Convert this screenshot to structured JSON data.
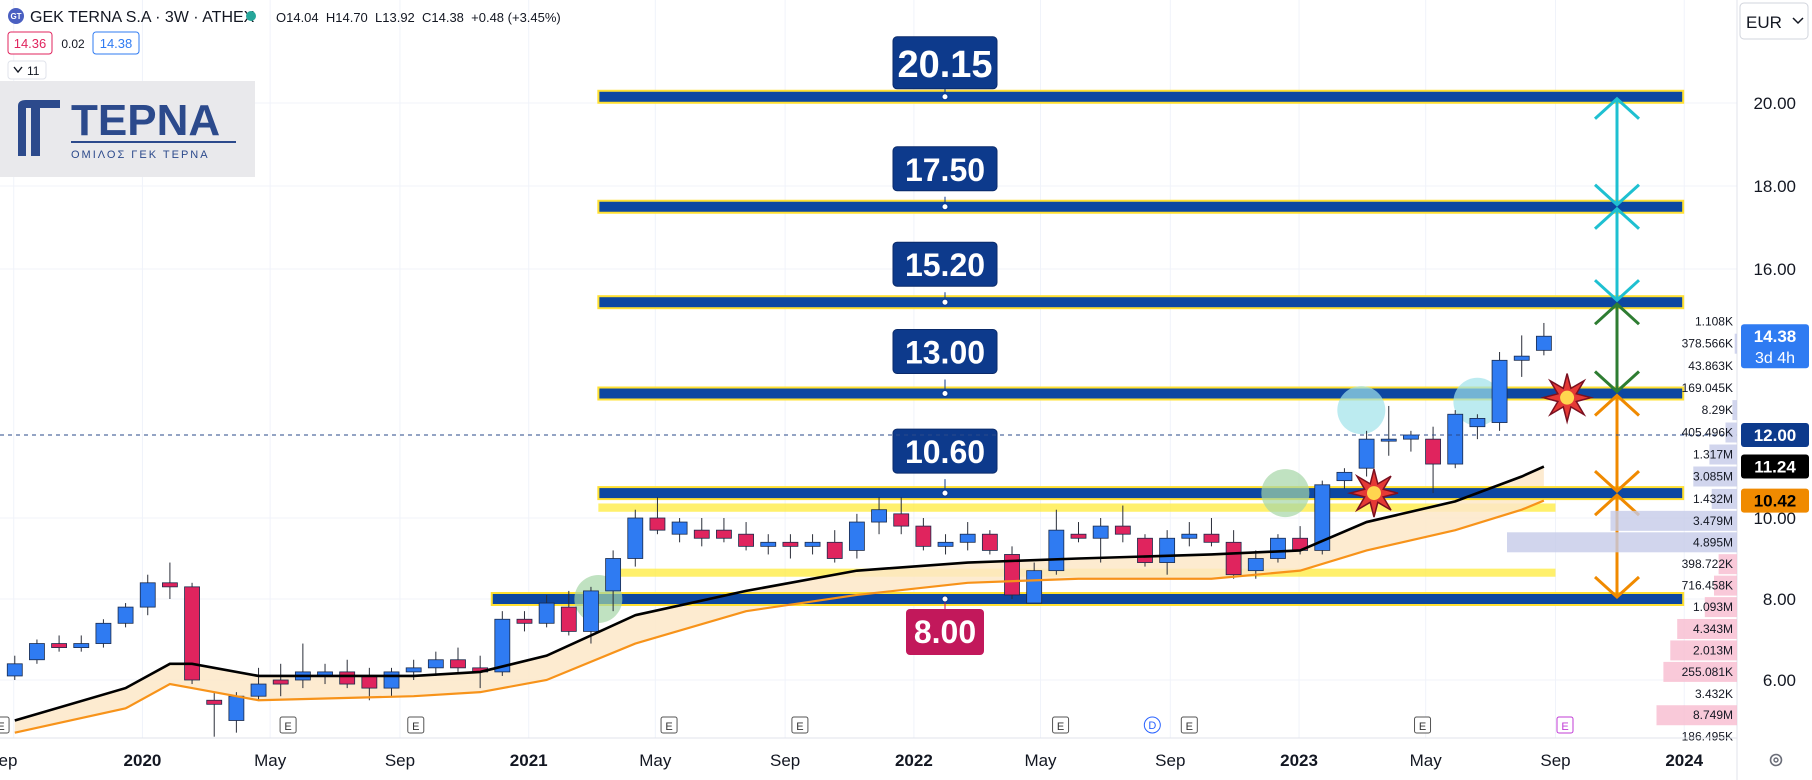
{
  "header": {
    "symbol_badge": "GT",
    "title": "GEK TERNA S.A · 3W · ATHEX",
    "ohlc": "O14.04  H14.70  L13.92  C14.38  +0.48 (+3.45%)",
    "bid": "14.36",
    "spread": "0.02",
    "ask": "14.38",
    "indicators_count": "11",
    "currency": "EUR"
  },
  "logo": {
    "name": "TEPNA",
    "subtitle": "ΟΜΙΛΟΣ ΓΕΚ ΤΕΡΝΑ"
  },
  "colors": {
    "up": "#2f7bf2",
    "down": "#e0245e",
    "level": "#0d47a1",
    "level_edge": "#ffe032",
    "ma_black": "#000000",
    "ma_orange": "#f7931a",
    "target_cyan": "#1ec0d1",
    "target_green": "#2e7d32",
    "target_orange": "#f08a00"
  },
  "chart_data": {
    "type": "candlestick",
    "y_range": [
      5,
      21
    ],
    "x_range": [
      "2019-09",
      "2024-02"
    ],
    "price_ticks": [
      "6.00",
      "8.00",
      "10.00",
      "16.00",
      "18.00",
      "20.00"
    ],
    "time_ticks": [
      {
        "label": "ep",
        "date": "2019-09"
      },
      {
        "label": "2020",
        "date": "2020-01",
        "bold": true
      },
      {
        "label": "May",
        "date": "2020-05"
      },
      {
        "label": "Sep",
        "date": "2020-09"
      },
      {
        "label": "2021",
        "date": "2021-01",
        "bold": true
      },
      {
        "label": "May",
        "date": "2021-05"
      },
      {
        "label": "Sep",
        "date": "2021-09"
      },
      {
        "label": "2022",
        "date": "2022-01",
        "bold": true
      },
      {
        "label": "May",
        "date": "2022-05"
      },
      {
        "label": "Sep",
        "date": "2022-09"
      },
      {
        "label": "2023",
        "date": "2023-01",
        "bold": true
      },
      {
        "label": "May",
        "date": "2023-05"
      },
      {
        "label": "Sep",
        "date": "2023-09"
      },
      {
        "label": "2024",
        "date": "2024-01",
        "bold": true
      }
    ],
    "candles": [
      {
        "date": "2019-09-02",
        "o": 6.1,
        "h": 6.6,
        "l": 6.0,
        "c": 6.4
      },
      {
        "date": "2019-09-23",
        "o": 6.5,
        "h": 7.0,
        "l": 6.4,
        "c": 6.9
      },
      {
        "date": "2019-10-14",
        "o": 6.9,
        "h": 7.1,
        "l": 6.7,
        "c": 6.8
      },
      {
        "date": "2019-11-04",
        "o": 6.8,
        "h": 7.1,
        "l": 6.7,
        "c": 6.9
      },
      {
        "date": "2019-11-25",
        "o": 6.9,
        "h": 7.5,
        "l": 6.8,
        "c": 7.4
      },
      {
        "date": "2019-12-16",
        "o": 7.4,
        "h": 7.9,
        "l": 7.3,
        "c": 7.8
      },
      {
        "date": "2020-01-06",
        "o": 7.8,
        "h": 8.6,
        "l": 7.6,
        "c": 8.4
      },
      {
        "date": "2020-01-27",
        "o": 8.4,
        "h": 8.9,
        "l": 8.0,
        "c": 8.3
      },
      {
        "date": "2020-02-17",
        "o": 8.3,
        "h": 8.4,
        "l": 5.9,
        "c": 6.0
      },
      {
        "date": "2020-03-09",
        "o": 5.5,
        "h": 5.7,
        "l": 4.6,
        "c": 5.4
      },
      {
        "date": "2020-03-30",
        "o": 5.0,
        "h": 5.7,
        "l": 4.7,
        "c": 5.6
      },
      {
        "date": "2020-04-20",
        "o": 5.6,
        "h": 6.3,
        "l": 5.5,
        "c": 5.9
      },
      {
        "date": "2020-05-11",
        "o": 6.0,
        "h": 6.4,
        "l": 5.6,
        "c": 5.9
      },
      {
        "date": "2020-06-01",
        "o": 6.0,
        "h": 6.9,
        "l": 5.8,
        "c": 6.2
      },
      {
        "date": "2020-06-22",
        "o": 6.1,
        "h": 6.4,
        "l": 5.9,
        "c": 6.2
      },
      {
        "date": "2020-07-13",
        "o": 6.2,
        "h": 6.5,
        "l": 5.8,
        "c": 5.9
      },
      {
        "date": "2020-08-03",
        "o": 6.1,
        "h": 6.3,
        "l": 5.5,
        "c": 5.8
      },
      {
        "date": "2020-08-24",
        "o": 5.8,
        "h": 6.3,
        "l": 5.6,
        "c": 6.2
      },
      {
        "date": "2020-09-14",
        "o": 6.2,
        "h": 6.5,
        "l": 6.0,
        "c": 6.3
      },
      {
        "date": "2020-10-05",
        "o": 6.3,
        "h": 6.7,
        "l": 6.1,
        "c": 6.5
      },
      {
        "date": "2020-10-26",
        "o": 6.5,
        "h": 6.8,
        "l": 6.2,
        "c": 6.3
      },
      {
        "date": "2020-11-16",
        "o": 6.3,
        "h": 6.6,
        "l": 5.8,
        "c": 6.2
      },
      {
        "date": "2020-12-07",
        "o": 6.2,
        "h": 7.7,
        "l": 6.1,
        "c": 7.5
      },
      {
        "date": "2020-12-28",
        "o": 7.5,
        "h": 7.7,
        "l": 7.2,
        "c": 7.4
      },
      {
        "date": "2021-01-18",
        "o": 7.4,
        "h": 8.1,
        "l": 7.3,
        "c": 7.9
      },
      {
        "date": "2021-02-08",
        "o": 7.8,
        "h": 8.2,
        "l": 7.1,
        "c": 7.2
      },
      {
        "date": "2021-03-01",
        "o": 7.2,
        "h": 8.3,
        "l": 6.9,
        "c": 8.2
      },
      {
        "date": "2021-03-22",
        "o": 8.2,
        "h": 9.2,
        "l": 7.7,
        "c": 9.0
      },
      {
        "date": "2021-04-12",
        "o": 9.0,
        "h": 10.2,
        "l": 8.8,
        "c": 10.0
      },
      {
        "date": "2021-05-03",
        "o": 10.0,
        "h": 10.5,
        "l": 9.6,
        "c": 9.7
      },
      {
        "date": "2021-05-24",
        "o": 9.6,
        "h": 10.0,
        "l": 9.4,
        "c": 9.9
      },
      {
        "date": "2021-06-14",
        "o": 9.7,
        "h": 10.0,
        "l": 9.3,
        "c": 9.5
      },
      {
        "date": "2021-07-05",
        "o": 9.7,
        "h": 10.0,
        "l": 9.4,
        "c": 9.5
      },
      {
        "date": "2021-07-26",
        "o": 9.6,
        "h": 9.9,
        "l": 9.2,
        "c": 9.3
      },
      {
        "date": "2021-08-16",
        "o": 9.3,
        "h": 9.6,
        "l": 9.1,
        "c": 9.4
      },
      {
        "date": "2021-09-06",
        "o": 9.4,
        "h": 9.6,
        "l": 9.0,
        "c": 9.3
      },
      {
        "date": "2021-09-27",
        "o": 9.3,
        "h": 9.6,
        "l": 9.1,
        "c": 9.4
      },
      {
        "date": "2021-10-18",
        "o": 9.4,
        "h": 9.7,
        "l": 8.9,
        "c": 9.0
      },
      {
        "date": "2021-11-08",
        "o": 9.2,
        "h": 10.1,
        "l": 9.0,
        "c": 9.9
      },
      {
        "date": "2021-11-29",
        "o": 9.9,
        "h": 10.5,
        "l": 9.6,
        "c": 10.2
      },
      {
        "date": "2021-12-20",
        "o": 10.1,
        "h": 10.5,
        "l": 9.6,
        "c": 9.8
      },
      {
        "date": "2022-01-10",
        "o": 9.8,
        "h": 10.0,
        "l": 9.2,
        "c": 9.3
      },
      {
        "date": "2022-01-31",
        "o": 9.3,
        "h": 9.6,
        "l": 9.1,
        "c": 9.4
      },
      {
        "date": "2022-02-21",
        "o": 9.4,
        "h": 9.9,
        "l": 9.2,
        "c": 9.6
      },
      {
        "date": "2022-03-14",
        "o": 9.6,
        "h": 9.7,
        "l": 9.1,
        "c": 9.2
      },
      {
        "date": "2022-04-04",
        "o": 9.1,
        "h": 9.3,
        "l": 8.0,
        "c": 8.1
      },
      {
        "date": "2022-04-25",
        "o": 7.9,
        "h": 8.9,
        "l": 7.9,
        "c": 8.7
      },
      {
        "date": "2022-05-16",
        "o": 8.7,
        "h": 10.2,
        "l": 8.6,
        "c": 9.7
      },
      {
        "date": "2022-06-06",
        "o": 9.6,
        "h": 9.9,
        "l": 9.4,
        "c": 9.5
      },
      {
        "date": "2022-06-27",
        "o": 9.5,
        "h": 10.0,
        "l": 8.9,
        "c": 9.8
      },
      {
        "date": "2022-07-18",
        "o": 9.8,
        "h": 10.3,
        "l": 9.4,
        "c": 9.6
      },
      {
        "date": "2022-08-08",
        "o": 9.5,
        "h": 9.6,
        "l": 8.8,
        "c": 8.9
      },
      {
        "date": "2022-08-29",
        "o": 8.9,
        "h": 9.7,
        "l": 8.6,
        "c": 9.5
      },
      {
        "date": "2022-09-19",
        "o": 9.5,
        "h": 9.9,
        "l": 9.3,
        "c": 9.6
      },
      {
        "date": "2022-10-10",
        "o": 9.6,
        "h": 10.0,
        "l": 9.3,
        "c": 9.4
      },
      {
        "date": "2022-10-31",
        "o": 9.4,
        "h": 9.7,
        "l": 8.5,
        "c": 8.6
      },
      {
        "date": "2022-11-21",
        "o": 8.7,
        "h": 9.2,
        "l": 8.5,
        "c": 9.0
      },
      {
        "date": "2022-12-12",
        "o": 9.0,
        "h": 9.6,
        "l": 8.9,
        "c": 9.5
      },
      {
        "date": "2023-01-02",
        "o": 9.5,
        "h": 9.8,
        "l": 9.1,
        "c": 9.2
      },
      {
        "date": "2023-01-23",
        "o": 9.2,
        "h": 10.9,
        "l": 9.1,
        "c": 10.8
      },
      {
        "date": "2023-02-13",
        "o": 10.9,
        "h": 11.2,
        "l": 10.7,
        "c": 11.1
      },
      {
        "date": "2023-03-06",
        "o": 11.2,
        "h": 12.1,
        "l": 11.0,
        "c": 11.9
      },
      {
        "date": "2023-03-27",
        "o": 11.9,
        "h": 12.7,
        "l": 11.5,
        "c": 11.9
      },
      {
        "date": "2023-04-17",
        "o": 11.9,
        "h": 12.1,
        "l": 11.6,
        "c": 12.0
      },
      {
        "date": "2023-05-08",
        "o": 11.9,
        "h": 12.2,
        "l": 10.6,
        "c": 11.3
      },
      {
        "date": "2023-05-29",
        "o": 11.3,
        "h": 12.6,
        "l": 11.2,
        "c": 12.5
      },
      {
        "date": "2023-06-19",
        "o": 12.2,
        "h": 12.5,
        "l": 11.9,
        "c": 12.4
      },
      {
        "date": "2023-07-10",
        "o": 12.3,
        "h": 14.0,
        "l": 12.1,
        "c": 13.8
      },
      {
        "date": "2023-07-31",
        "o": 13.8,
        "h": 14.4,
        "l": 13.4,
        "c": 13.9
      },
      {
        "date": "2023-08-21",
        "o": 14.04,
        "h": 14.7,
        "l": 13.92,
        "c": 14.38
      }
    ],
    "ma_black": [
      [
        "2019-09-02",
        5.0
      ],
      [
        "2019-12-16",
        5.8
      ],
      [
        "2020-01-27",
        6.4
      ],
      [
        "2020-02-17",
        6.4
      ],
      [
        "2020-04-20",
        6.1
      ],
      [
        "2020-09-14",
        6.1
      ],
      [
        "2020-11-16",
        6.2
      ],
      [
        "2021-01-18",
        6.6
      ],
      [
        "2021-04-12",
        7.6
      ],
      [
        "2021-07-26",
        8.2
      ],
      [
        "2021-11-08",
        8.7
      ],
      [
        "2022-02-21",
        8.9
      ],
      [
        "2022-06-06",
        9.0
      ],
      [
        "2022-10-10",
        9.1
      ],
      [
        "2023-01-02",
        9.2
      ],
      [
        "2023-03-06",
        9.9
      ],
      [
        "2023-05-29",
        10.4
      ],
      [
        "2023-07-31",
        11.0
      ],
      [
        "2023-08-21",
        11.24
      ]
    ],
    "ma_orange": [
      [
        "2019-09-02",
        4.7
      ],
      [
        "2019-12-16",
        5.3
      ],
      [
        "2020-01-27",
        5.9
      ],
      [
        "2020-02-17",
        5.8
      ],
      [
        "2020-04-20",
        5.5
      ],
      [
        "2020-09-14",
        5.6
      ],
      [
        "2020-11-16",
        5.7
      ],
      [
        "2021-01-18",
        6.0
      ],
      [
        "2021-04-12",
        6.9
      ],
      [
        "2021-07-26",
        7.7
      ],
      [
        "2021-11-08",
        8.1
      ],
      [
        "2022-02-21",
        8.4
      ],
      [
        "2022-06-06",
        8.5
      ],
      [
        "2022-10-10",
        8.5
      ],
      [
        "2023-01-02",
        8.7
      ],
      [
        "2023-03-06",
        9.2
      ],
      [
        "2023-05-29",
        9.7
      ],
      [
        "2023-07-31",
        10.2
      ],
      [
        "2023-08-21",
        10.42
      ]
    ],
    "levels": [
      {
        "value": 20.15,
        "label": "20.15",
        "start": "2021-03-08"
      },
      {
        "value": 17.5,
        "label": "17.50",
        "start": "2021-03-08"
      },
      {
        "value": 15.2,
        "label": "15.20",
        "start": "2021-03-08"
      },
      {
        "value": 13.0,
        "label": "13.00",
        "start": "2021-03-08"
      },
      {
        "value": 10.6,
        "label": "10.60",
        "start": "2021-03-08"
      },
      {
        "value": 8.0,
        "label": "8.00",
        "start": "2020-11-27",
        "label_below": true
      }
    ],
    "level_end": "2023-12-31",
    "zones": [
      {
        "top": 10.35,
        "bottom": 10.15,
        "start": "2021-03-08",
        "end": "2023-09-01"
      },
      {
        "top": 8.75,
        "bottom": 8.55,
        "start": "2021-03-15",
        "end": "2023-09-01"
      }
    ],
    "target_arrows": [
      {
        "from": 17.5,
        "to": 20.15,
        "color": "cyan"
      },
      {
        "from": 15.2,
        "to": 17.5,
        "color": "cyan"
      },
      {
        "from": 13.0,
        "to": 15.2,
        "color": "green"
      },
      {
        "from": 10.6,
        "to": 13.0,
        "color": "orange"
      },
      {
        "from": 8.0,
        "to": 10.6,
        "color": "orange"
      }
    ],
    "circles": [
      {
        "date": "2021-03-08",
        "value": 8.0,
        "color": "green"
      },
      {
        "date": "2022-12-19",
        "value": 10.6,
        "color": "green"
      },
      {
        "date": "2023-03-01",
        "value": 12.6,
        "color": "cyan"
      },
      {
        "date": "2023-06-19",
        "value": 12.8,
        "color": "cyan"
      }
    ],
    "bursts": [
      {
        "date": "2023-03-13",
        "value": 10.6
      },
      {
        "date": "2023-09-12",
        "value": 12.9
      }
    ],
    "earnings_markers": [
      "2019-08-20",
      "2020-05-18",
      "2020-09-16",
      "2021-05-14",
      "2021-09-15",
      "2022-05-20",
      "2022-09-19",
      "2023-04-28"
    ],
    "dividend_marker": "2022-09-01",
    "future_earnings": "2023-09-10",
    "volume_profile": [
      {
        "value": 14.73,
        "label": "1.108K",
        "w": 0.0
      },
      {
        "value": 14.2,
        "label": "378.566K",
        "w": 0.01
      },
      {
        "value": 13.66,
        "label": "43.863K",
        "w": 0.0
      },
      {
        "value": 13.13,
        "label": "169.045K",
        "w": 0.0
      },
      {
        "value": 12.6,
        "label": "8.29K",
        "w": 0.02
      },
      {
        "value": 12.06,
        "label": "405.496K",
        "w": 0.05
      },
      {
        "value": 11.53,
        "label": "1.317M",
        "w": 0.12
      },
      {
        "value": 11.0,
        "label": "3.085M",
        "w": 0.19
      },
      {
        "value": 10.46,
        "label": "1.432M",
        "w": 0.11
      },
      {
        "value": 9.93,
        "label": "3.479M",
        "w": 0.55
      },
      {
        "value": 9.4,
        "label": "4.895M",
        "w": 1.0
      },
      {
        "value": 8.86,
        "label": "398.722K",
        "w": 0.08
      },
      {
        "value": 8.33,
        "label": "716.458K",
        "w": 0.1
      },
      {
        "value": 7.8,
        "label": "1.093M",
        "w": 0.14
      },
      {
        "value": 7.26,
        "label": "4.343M",
        "w": 0.26
      },
      {
        "value": 6.73,
        "label": "2.013M",
        "w": 0.29
      },
      {
        "value": 6.2,
        "label": "255.081K",
        "w": 0.32
      },
      {
        "value": 5.66,
        "label": "3.432K",
        "w": 0.0
      },
      {
        "value": 5.13,
        "label": "8.749M",
        "w": 0.35
      },
      {
        "value": 4.6,
        "label": "186.495K",
        "w": 0.0
      }
    ],
    "price_labels": [
      {
        "value": 14.38,
        "text": "14.38",
        "sub": "3d 4h",
        "bg": "#2f7bf2"
      },
      {
        "value": 12.0,
        "text": "12.00",
        "bg": "#0d3a8c"
      },
      {
        "value": 11.24,
        "text": "11.24",
        "bg": "#000000"
      },
      {
        "value": 10.42,
        "text": "10.42",
        "bg": "#f08a00",
        "fg": "#000000"
      }
    ],
    "crosshair_value": 12.0
  }
}
